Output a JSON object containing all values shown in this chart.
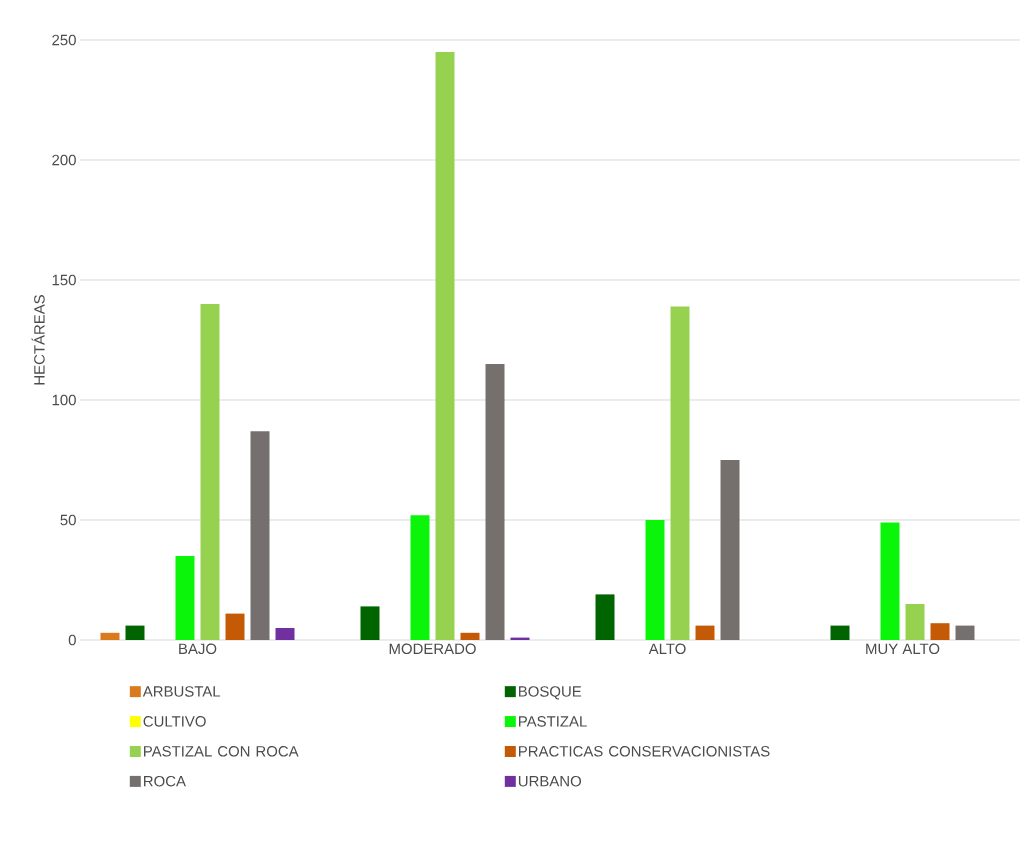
{
  "chart_data": {
    "type": "bar",
    "ylabel": "HECTÁREAS",
    "categories": [
      "BAJO",
      "MODERADO",
      "ALTO",
      "MUY ALTO"
    ],
    "series": [
      {
        "name": "ARBUSTAL",
        "color": "#d97b1c",
        "values": [
          3,
          0,
          0,
          0
        ]
      },
      {
        "name": "BOSQUE",
        "color": "#006400",
        "values": [
          6,
          14,
          19,
          6
        ]
      },
      {
        "name": "CULTIVO",
        "color": "#ffff00",
        "values": [
          0,
          0,
          0,
          0
        ]
      },
      {
        "name": "PASTIZAL",
        "color": "#0af50a",
        "values": [
          35,
          52,
          50,
          49
        ]
      },
      {
        "name": "PASTIZAL CON ROCA",
        "color": "#96d250",
        "values": [
          140,
          245,
          139,
          15
        ]
      },
      {
        "name": "PRACTICAS CONSERVACIONISTAS",
        "color": "#c55a06",
        "values": [
          11,
          3,
          6,
          7
        ]
      },
      {
        "name": "ROCA",
        "color": "#75706e",
        "values": [
          87,
          115,
          75,
          6
        ]
      },
      {
        "name": "URBANO",
        "color": "#7030a0",
        "values": [
          5,
          1,
          0,
          0
        ]
      }
    ],
    "ylim": [
      0,
      250
    ],
    "yticks": [
      0,
      50,
      100,
      150,
      200,
      250
    ],
    "grid": "y",
    "legend": "bottom"
  }
}
